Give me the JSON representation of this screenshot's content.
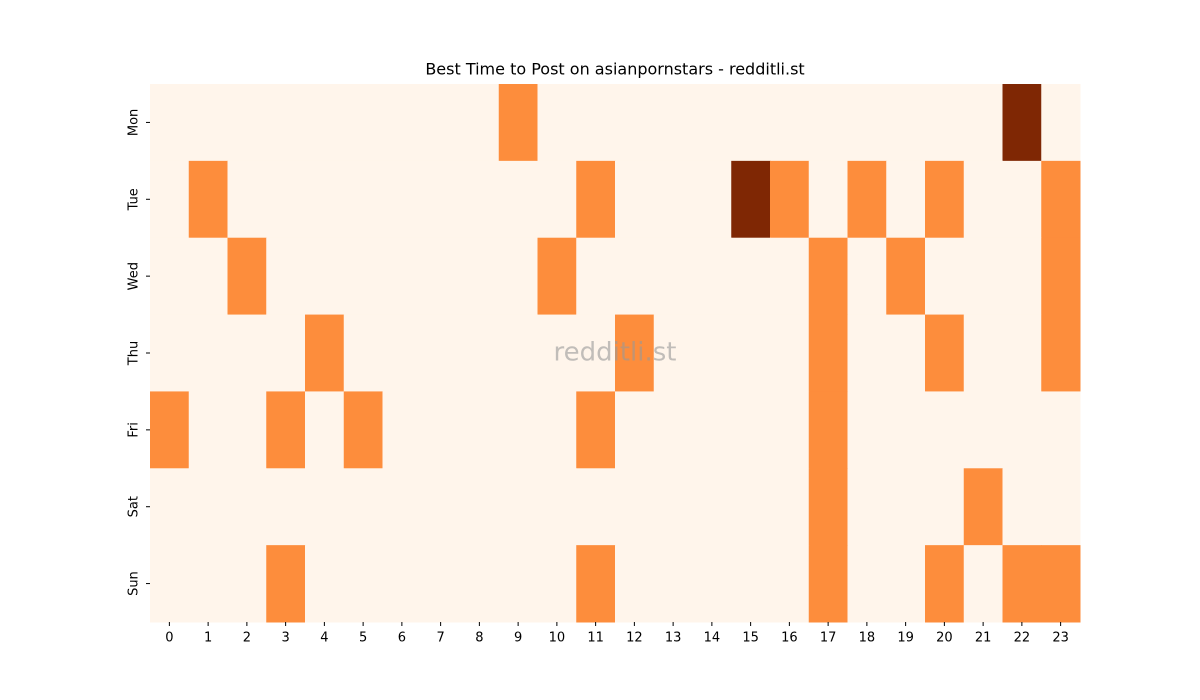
{
  "chart_data": {
    "type": "heatmap",
    "title": "Best Time to Post on asianpornstars - redditli.st",
    "watermark": "redditli.st",
    "x": [
      0,
      1,
      2,
      3,
      4,
      5,
      6,
      7,
      8,
      9,
      10,
      11,
      12,
      13,
      14,
      15,
      16,
      17,
      18,
      19,
      20,
      21,
      22,
      23
    ],
    "y": [
      "Mon",
      "Tue",
      "Wed",
      "Thu",
      "Fri",
      "Sat",
      "Sun"
    ],
    "values": [
      [
        0,
        0,
        0,
        0,
        0,
        0,
        0,
        0,
        0,
        1,
        0,
        0,
        0,
        0,
        0,
        0,
        0,
        0,
        0,
        0,
        0,
        0,
        2,
        0
      ],
      [
        0,
        1,
        0,
        0,
        0,
        0,
        0,
        0,
        0,
        0,
        0,
        1,
        0,
        0,
        0,
        2,
        1,
        0,
        1,
        0,
        1,
        0,
        0,
        1
      ],
      [
        0,
        0,
        1,
        0,
        0,
        0,
        0,
        0,
        0,
        0,
        1,
        0,
        0,
        0,
        0,
        0,
        0,
        1,
        0,
        1,
        0,
        0,
        0,
        1
      ],
      [
        0,
        0,
        0,
        0,
        1,
        0,
        0,
        0,
        0,
        0,
        0,
        0,
        1,
        0,
        0,
        0,
        0,
        1,
        0,
        0,
        1,
        0,
        0,
        1
      ],
      [
        1,
        0,
        0,
        1,
        0,
        1,
        0,
        0,
        0,
        0,
        0,
        1,
        0,
        0,
        0,
        0,
        0,
        1,
        0,
        0,
        0,
        0,
        0,
        0
      ],
      [
        0,
        0,
        0,
        0,
        0,
        0,
        0,
        0,
        0,
        0,
        0,
        0,
        0,
        0,
        0,
        0,
        0,
        1,
        0,
        0,
        0,
        1,
        0,
        0
      ],
      [
        0,
        0,
        0,
        1,
        0,
        0,
        0,
        0,
        0,
        0,
        0,
        1,
        0,
        0,
        0,
        0,
        0,
        1,
        0,
        0,
        1,
        0,
        1,
        1
      ]
    ],
    "zlim": [
      0,
      2
    ],
    "colormap": [
      "#fff5eb",
      "#fd8d3c",
      "#7f2704"
    ]
  }
}
